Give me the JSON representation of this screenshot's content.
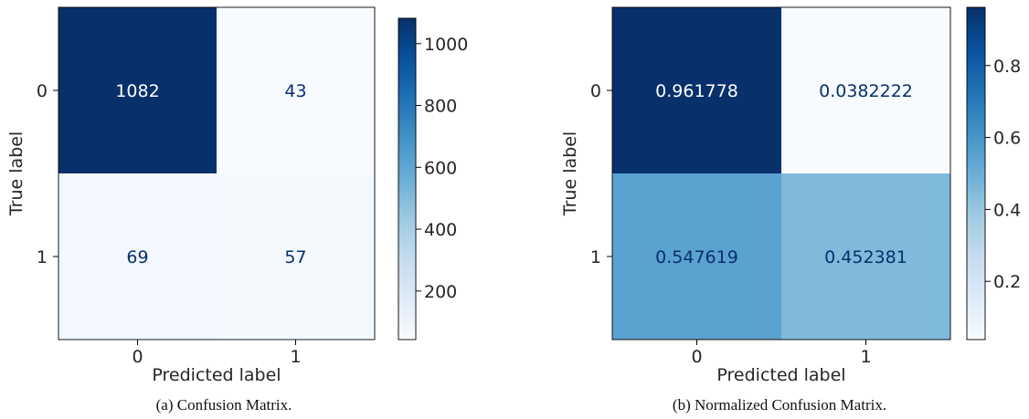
{
  "chart_data": [
    {
      "type": "heatmap",
      "title": "",
      "xlabel": "Predicted label",
      "ylabel": "True label",
      "x_categories": [
        "0",
        "1"
      ],
      "y_categories": [
        "0",
        "1"
      ],
      "cell_text": [
        [
          "1082",
          "43"
        ],
        [
          "69",
          "57"
        ]
      ],
      "values": [
        [
          1082,
          43
        ],
        [
          69,
          57
        ]
      ],
      "vmin": 43,
      "vmax": 1082,
      "colormap": "Blues",
      "colorbar_ticks": [
        200,
        400,
        600,
        800,
        1000
      ],
      "caption": "(a) Confusion Matrix."
    },
    {
      "type": "heatmap",
      "title": "",
      "xlabel": "Predicted label",
      "ylabel": "True label",
      "x_categories": [
        "0",
        "1"
      ],
      "y_categories": [
        "0",
        "1"
      ],
      "cell_text": [
        [
          "0.961778",
          "0.0382222"
        ],
        [
          "0.547619",
          "0.452381"
        ]
      ],
      "values": [
        [
          0.961778,
          0.0382222
        ],
        [
          0.547619,
          0.452381
        ]
      ],
      "vmin": 0.0382222,
      "vmax": 0.961778,
      "colormap": "Blues",
      "colorbar_ticks": [
        0.2,
        0.4,
        0.6,
        0.8
      ],
      "colorbar_tick_labels": [
        "0.2",
        "0.4",
        "0.6",
        "0.8"
      ],
      "caption": "(b) Normalized Confusion Matrix."
    }
  ]
}
